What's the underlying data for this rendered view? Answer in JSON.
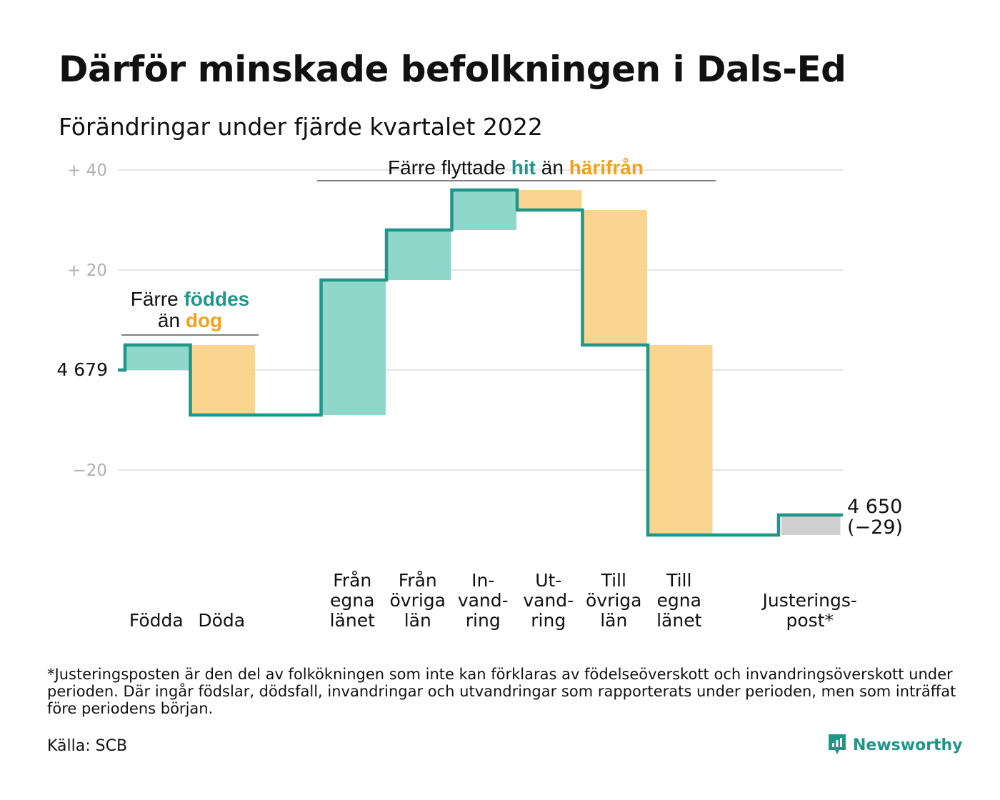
{
  "title": "Därför minskade befolkningen i Dals-Ed",
  "subtitle": "Förändringar under fjärde kvartalet 2022",
  "colors": {
    "inflow": "#8fd6cb",
    "outflow": "#fad58f",
    "adjustment": "#cfcfcf",
    "line": "#1e9688",
    "accent_teal": "#1e9688",
    "accent_orange": "#f0a21d"
  },
  "annotations": {
    "births_deaths": {
      "prefix": "Färre",
      "highlight1": "föddes",
      "mid": "än",
      "highlight2": "dog"
    },
    "moves": {
      "prefix": "Färre flyttade",
      "highlight1": "hit",
      "mid": "än",
      "highlight2": "härifrån"
    }
  },
  "start_label": "4 679",
  "end_label": {
    "value": "4 650",
    "change": "(−29)"
  },
  "footnote": "*Justeringsposten är den del av folkökningen som inte kan förklaras av födelseöverskott och invandringsöverskott under perioden. Där ingår födslar, dödsfall, invandringar och utvandringar som rapporterats under perioden, men som inträffat före periodens början.",
  "source": "Källa: SCB",
  "brand": "Newsworthy",
  "brand_icon": "newsworthy-logo-icon",
  "chart_data": {
    "type": "waterfall",
    "start": 0,
    "end": -29,
    "ylim": [
      -35,
      40
    ],
    "grid": true,
    "yticks": [
      {
        "value": 40,
        "label": "+ 40"
      },
      {
        "value": 20,
        "label": "+ 20"
      },
      {
        "value": 0,
        "label": "4 679"
      },
      {
        "value": -20,
        "label": "−20"
      }
    ],
    "steps": [
      {
        "label": [
          "Födda"
        ],
        "delta": 5,
        "kind": "inflow"
      },
      {
        "label": [
          "Döda"
        ],
        "delta": -14,
        "kind": "outflow"
      },
      {
        "label": [],
        "delta": 0,
        "kind": "gap"
      },
      {
        "label": [
          "Från",
          "egna",
          "länet"
        ],
        "delta": 27,
        "kind": "inflow"
      },
      {
        "label": [
          "Från",
          "övriga",
          "län"
        ],
        "delta": 10,
        "kind": "inflow"
      },
      {
        "label": [
          "In-",
          "vand-",
          "ring"
        ],
        "delta": 8,
        "kind": "inflow"
      },
      {
        "label": [
          "Ut-",
          "vand-",
          "ring"
        ],
        "delta": -4,
        "kind": "outflow"
      },
      {
        "label": [
          "Till",
          "övriga",
          "län"
        ],
        "delta": -27,
        "kind": "outflow"
      },
      {
        "label": [
          "Till",
          "egna",
          "länet"
        ],
        "delta": -38,
        "kind": "outflow"
      },
      {
        "label": [],
        "delta": 0,
        "kind": "gap"
      },
      {
        "label": [
          "Justerings-",
          "post*"
        ],
        "delta": 4,
        "kind": "adjustment"
      }
    ]
  }
}
